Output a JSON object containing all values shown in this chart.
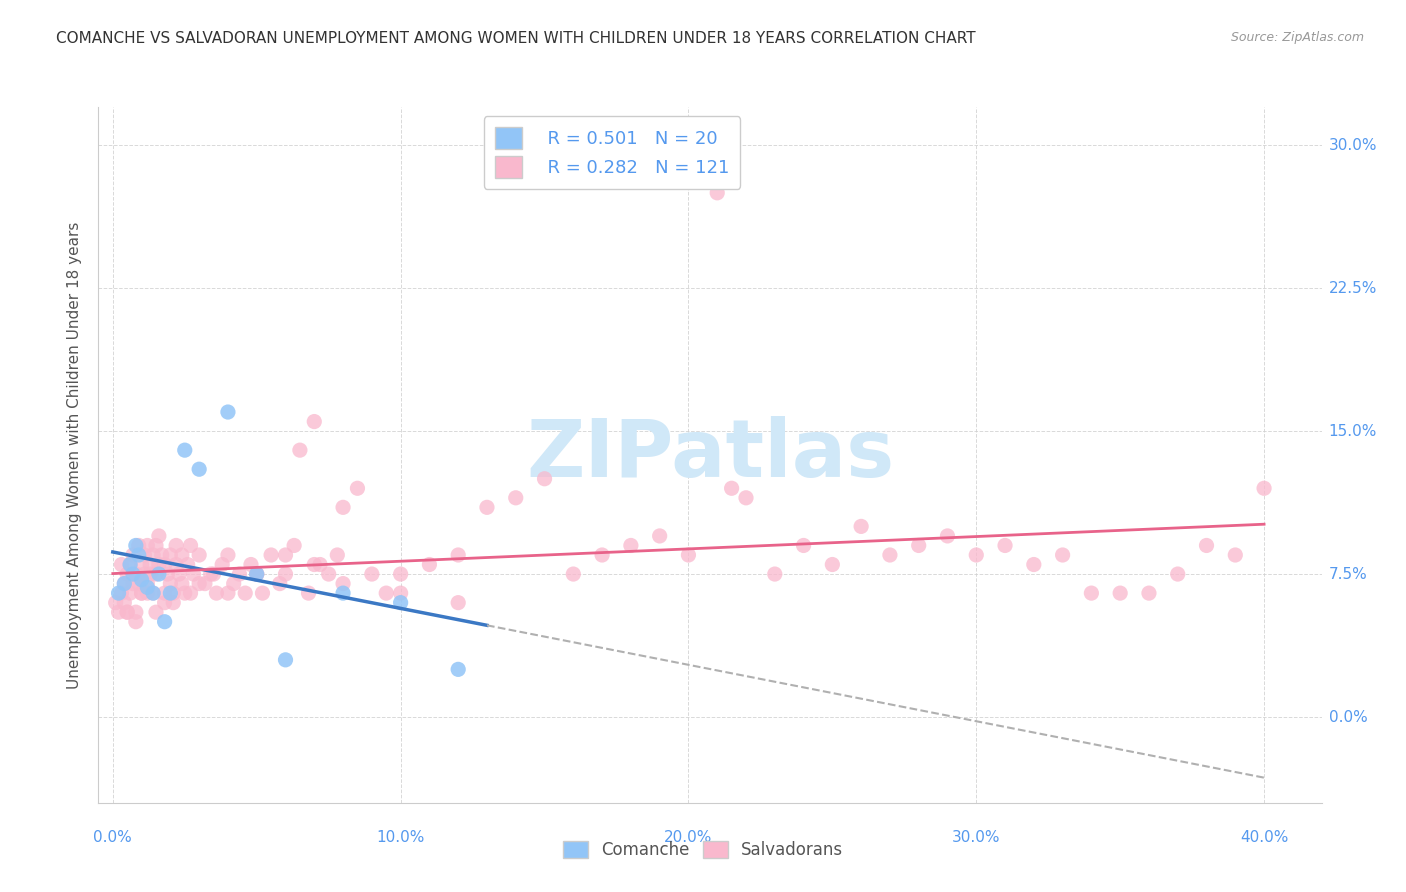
{
  "title": "COMANCHE VS SALVADORAN UNEMPLOYMENT AMONG WOMEN WITH CHILDREN UNDER 18 YEARS CORRELATION CHART",
  "source": "Source: ZipAtlas.com",
  "ylabel": "Unemployment Among Women with Children Under 18 years",
  "xlim": [
    -0.005,
    0.42
  ],
  "ylim": [
    -0.045,
    0.32
  ],
  "xtick_positions": [
    0.0,
    0.1,
    0.2,
    0.3,
    0.4
  ],
  "xtick_labels": [
    "0.0%",
    "10.0%",
    "20.0%",
    "30.0%",
    "40.0%"
  ],
  "ytick_positions": [
    0.0,
    0.075,
    0.15,
    0.225,
    0.3
  ],
  "ytick_labels_left": [
    "",
    "",
    "",
    "",
    ""
  ],
  "ytick_labels_right": [
    "0.0%",
    "7.5%",
    "15.0%",
    "22.5%",
    "30.0%"
  ],
  "comanche_R": 0.501,
  "comanche_N": 20,
  "salvadoran_R": 0.282,
  "salvadoran_N": 121,
  "comanche_color": "#92c5f7",
  "salvadoran_color": "#f9b8cd",
  "comanche_line_color": "#3b78c4",
  "salvadoran_line_color": "#e8638a",
  "dash_line_color": "#b0b0b0",
  "background_color": "#ffffff",
  "grid_color": "#d0d0d0",
  "title_color": "#333333",
  "axis_label_color": "#5599ee",
  "right_label_color": "#5599ee",
  "source_color": "#999999",
  "watermark_text": "ZIPatlas",
  "watermark_color": "#d0e8f8",
  "comanche_x": [
    0.002,
    0.004,
    0.006,
    0.007,
    0.008,
    0.009,
    0.01,
    0.012,
    0.014,
    0.016,
    0.018,
    0.02,
    0.025,
    0.03,
    0.04,
    0.05,
    0.06,
    0.08,
    0.1,
    0.12
  ],
  "comanche_y": [
    0.065,
    0.07,
    0.08,
    0.075,
    0.09,
    0.085,
    0.072,
    0.068,
    0.065,
    0.075,
    0.05,
    0.065,
    0.14,
    0.13,
    0.16,
    0.075,
    0.03,
    0.065,
    0.06,
    0.025
  ],
  "salvadoran_x": [
    0.001,
    0.002,
    0.003,
    0.004,
    0.004,
    0.005,
    0.005,
    0.006,
    0.006,
    0.007,
    0.007,
    0.008,
    0.008,
    0.009,
    0.009,
    0.01,
    0.01,
    0.011,
    0.011,
    0.012,
    0.012,
    0.013,
    0.013,
    0.014,
    0.014,
    0.015,
    0.015,
    0.016,
    0.016,
    0.017,
    0.018,
    0.018,
    0.019,
    0.02,
    0.02,
    0.021,
    0.022,
    0.022,
    0.023,
    0.024,
    0.025,
    0.026,
    0.027,
    0.028,
    0.03,
    0.032,
    0.034,
    0.036,
    0.038,
    0.04,
    0.042,
    0.044,
    0.046,
    0.048,
    0.05,
    0.052,
    0.055,
    0.058,
    0.06,
    0.063,
    0.065,
    0.068,
    0.07,
    0.072,
    0.075,
    0.078,
    0.08,
    0.085,
    0.09,
    0.095,
    0.1,
    0.11,
    0.12,
    0.13,
    0.14,
    0.15,
    0.16,
    0.17,
    0.18,
    0.19,
    0.2,
    0.21,
    0.22,
    0.23,
    0.24,
    0.25,
    0.26,
    0.27,
    0.28,
    0.29,
    0.3,
    0.31,
    0.32,
    0.33,
    0.34,
    0.35,
    0.36,
    0.37,
    0.38,
    0.39,
    0.003,
    0.005,
    0.008,
    0.01,
    0.012,
    0.015,
    0.018,
    0.021,
    0.024,
    0.027,
    0.03,
    0.035,
    0.04,
    0.05,
    0.06,
    0.07,
    0.08,
    0.1,
    0.12,
    0.215,
    0.4
  ],
  "salvadoran_y": [
    0.06,
    0.055,
    0.065,
    0.07,
    0.06,
    0.075,
    0.055,
    0.065,
    0.08,
    0.07,
    0.085,
    0.055,
    0.075,
    0.07,
    0.09,
    0.065,
    0.08,
    0.075,
    0.085,
    0.07,
    0.09,
    0.08,
    0.075,
    0.085,
    0.065,
    0.075,
    0.09,
    0.08,
    0.095,
    0.085,
    0.065,
    0.08,
    0.075,
    0.085,
    0.07,
    0.065,
    0.08,
    0.09,
    0.075,
    0.085,
    0.065,
    0.08,
    0.09,
    0.075,
    0.085,
    0.07,
    0.075,
    0.065,
    0.08,
    0.085,
    0.07,
    0.075,
    0.065,
    0.08,
    0.075,
    0.065,
    0.085,
    0.07,
    0.085,
    0.09,
    0.14,
    0.065,
    0.155,
    0.08,
    0.075,
    0.085,
    0.11,
    0.12,
    0.075,
    0.065,
    0.075,
    0.08,
    0.085,
    0.11,
    0.115,
    0.125,
    0.075,
    0.085,
    0.09,
    0.095,
    0.085,
    0.275,
    0.115,
    0.075,
    0.09,
    0.08,
    0.1,
    0.085,
    0.09,
    0.095,
    0.085,
    0.09,
    0.08,
    0.085,
    0.065,
    0.065,
    0.065,
    0.075,
    0.09,
    0.085,
    0.08,
    0.055,
    0.05,
    0.065,
    0.065,
    0.055,
    0.06,
    0.06,
    0.07,
    0.065,
    0.07,
    0.075,
    0.065,
    0.075,
    0.075,
    0.08,
    0.07,
    0.065,
    0.06,
    0.12,
    0.12
  ]
}
